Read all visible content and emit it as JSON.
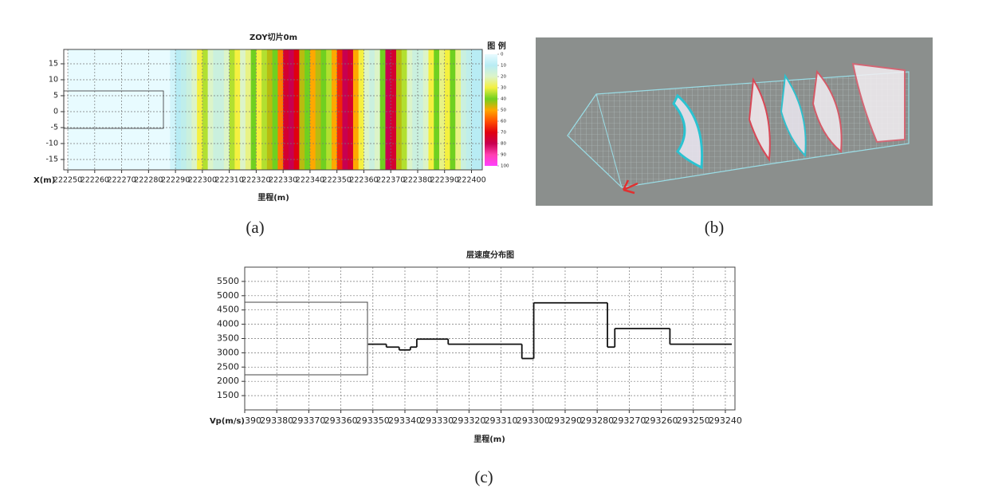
{
  "chart_data": [
    {
      "type": "heatmap",
      "title": "ZOY切片0m",
      "x_label": "里程(m)",
      "y_label": "X(m)",
      "caption": "(a)",
      "xlim": [
        222248.5,
        222404
      ],
      "ylim": [
        -18.25,
        19.5
      ],
      "xticks": [
        222250,
        222260,
        222270,
        222280,
        222290,
        222300,
        222310,
        222320,
        222330,
        222340,
        222350,
        222360,
        222370,
        222380,
        222390,
        222400
      ],
      "yticks": [
        -15,
        -10,
        -5,
        0,
        5,
        10,
        15
      ],
      "grid": true,
      "x": [
        222250,
        222252,
        222254,
        222256,
        222258,
        222260,
        222262,
        222264,
        222266,
        222268,
        222270,
        222272,
        222274,
        222276,
        222278,
        222280,
        222282,
        222284,
        222286,
        222288,
        222290,
        222292,
        222294,
        222296,
        222298,
        222300,
        222302,
        222304,
        222306,
        222308,
        222310,
        222312,
        222314,
        222316,
        222318,
        222320,
        222322,
        222324,
        222326,
        222328,
        222330,
        222332,
        222334,
        222336,
        222338,
        222340,
        222342,
        222344,
        222346,
        222348,
        222350,
        222352,
        222354,
        222356,
        222358,
        222360,
        222362,
        222364,
        222366,
        222368,
        222370,
        222372,
        222374,
        222376,
        222378,
        222380,
        222382,
        222384,
        222386,
        222388,
        222390,
        222392,
        222394,
        222396,
        222398,
        222400,
        222402,
        222404
      ],
      "values": [
        0,
        0,
        0,
        0,
        0,
        0,
        0,
        0,
        0,
        0,
        0,
        0,
        0,
        0,
        0,
        0,
        0,
        0,
        0,
        5,
        10,
        12,
        15,
        20,
        30,
        35,
        20,
        15,
        15,
        20,
        35,
        30,
        20,
        25,
        40,
        30,
        35,
        45,
        40,
        55,
        75,
        80,
        70,
        45,
        40,
        50,
        45,
        40,
        35,
        50,
        65,
        80,
        75,
        50,
        30,
        20,
        15,
        20,
        40,
        80,
        75,
        45,
        35,
        20,
        15,
        15,
        20,
        30,
        40,
        25,
        30,
        40,
        25,
        15,
        12,
        10,
        10,
        8
      ],
      "colorbar": {
        "label": "图 例",
        "ticks": [
          0,
          10,
          20,
          30,
          40,
          50,
          60,
          70,
          80,
          90,
          100
        ],
        "colors": [
          "#e8fbff",
          "#b8ecf4",
          "#dcf4c8",
          "#f4f040",
          "#70d020",
          "#ffa800",
          "#ff5000",
          "#e00010",
          "#c80050",
          "#ff40b0",
          "#ff40ff"
        ]
      }
    },
    {
      "type": "step",
      "title": "层速度分布图",
      "x_label": "里程(m)",
      "y_label": "Vp(m/s)",
      "caption": "(c)",
      "xlim": [
        293390,
        293237
      ],
      "ylim": [
        1000,
        6000
      ],
      "xticks": [
        293390,
        293380,
        293370,
        293360,
        293350,
        293340,
        293330,
        293320,
        293310,
        293300,
        293290,
        293280,
        293270,
        293260,
        293250,
        293240
      ],
      "yticks": [
        1500,
        2000,
        2500,
        3000,
        3500,
        4000,
        4500,
        5000,
        5500
      ],
      "grid": true,
      "color": "#111111",
      "x": [
        293351.5,
        293345.8,
        293341.8,
        293338.3,
        293336.3,
        293326.5,
        293303.5,
        293299.8,
        293276.8,
        293274.5,
        293257.3
      ],
      "values": [
        3300,
        3200,
        3100,
        3200,
        3480,
        3300,
        2800,
        4750,
        3200,
        3850,
        3300
      ]
    }
  ],
  "image_b": {
    "caption": "(b)"
  }
}
